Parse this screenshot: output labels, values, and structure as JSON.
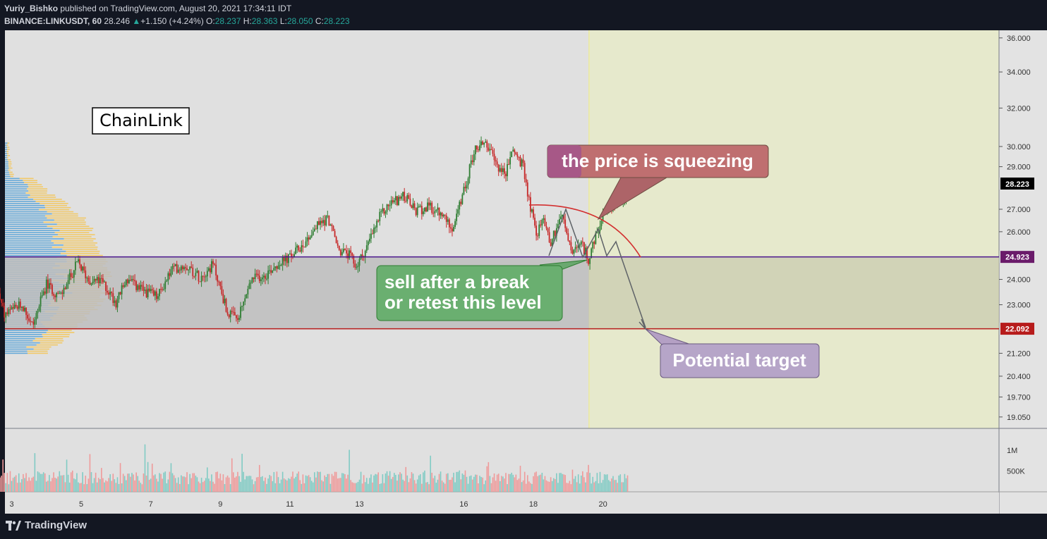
{
  "header": {
    "author": "Yuriy_Bishko",
    "published_text": " published on TradingView.com, August 20, 2021 17:34:11 IDT",
    "symbol": "BINANCE:LINKUSDT, 60",
    "last_price": "28.246",
    "change_arrow": "▲",
    "change": "+1.150 (+4.24%)",
    "o_label": "O:",
    "o_value": "28.237",
    "h_label": "H:",
    "h_value": "28.363",
    "l_label": "L:",
    "l_value": "28.050",
    "c_label": "C:",
    "c_value": "28.223"
  },
  "footer": {
    "brand": "TradingView"
  },
  "colors": {
    "up": "#26a69a",
    "down": "#ef5350",
    "candle_up": "#2e7d32",
    "candle_down": "#c62828",
    "chart_bg": "#e0e0e0",
    "forecast_bg": "#e6e9cc",
    "range_box": "#bdbdbd",
    "resistance_line": "#4a148c",
    "support_line": "#b71c1c",
    "profile_blue": "#4f9fd6",
    "profile_orange": "#f5c451"
  },
  "chart_data": {
    "type": "candlestick",
    "symbol": "BINANCE:LINKUSDT",
    "interval": "60",
    "y_axis_labels": [
      "36.000",
      "34.000",
      "32.000",
      "30.000",
      "29.000",
      "27.000",
      "26.000",
      "24.000",
      "23.000",
      "21.200",
      "20.400",
      "19.700",
      "19.050"
    ],
    "y_scale": "log",
    "y_range": [
      18.6,
      36.8
    ],
    "x_axis_labels": [
      "3",
      "5",
      "7",
      "9",
      "11",
      "13",
      "16",
      "18",
      "20"
    ],
    "x_axis_unit": "day of August 2021",
    "volume_labels": [
      "1M",
      "500K"
    ],
    "volume_range": [
      0,
      1400000
    ],
    "current_price_label": "28.223",
    "resistance_price": "24.923",
    "support_price": "22.092",
    "forecast_start_x": 19.6,
    "price_path": [
      [
        2.0,
        23.5
      ],
      [
        2.5,
        24.0
      ],
      [
        2.8,
        22.6
      ],
      [
        3.3,
        23.0
      ],
      [
        3.6,
        22.2
      ],
      [
        4.0,
        23.8
      ],
      [
        4.4,
        23.3
      ],
      [
        4.9,
        24.7
      ],
      [
        5.2,
        24.0
      ],
      [
        5.6,
        23.9
      ],
      [
        6.0,
        23.1
      ],
      [
        6.3,
        24.0
      ],
      [
        6.7,
        23.6
      ],
      [
        7.2,
        23.3
      ],
      [
        7.6,
        24.4
      ],
      [
        8.0,
        24.6
      ],
      [
        8.4,
        24.1
      ],
      [
        8.8,
        24.6
      ],
      [
        9.2,
        22.7
      ],
      [
        9.5,
        22.4
      ],
      [
        9.9,
        24.0
      ],
      [
        10.3,
        24.2
      ],
      [
        10.6,
        24.6
      ],
      [
        11.0,
        24.9
      ],
      [
        11.4,
        25.5
      ],
      [
        11.8,
        26.3
      ],
      [
        12.1,
        26.6
      ],
      [
        12.4,
        25.2
      ],
      [
        12.7,
        25.0
      ],
      [
        12.9,
        24.5
      ],
      [
        13.2,
        25.3
      ],
      [
        13.6,
        26.7
      ],
      [
        13.9,
        27.3
      ],
      [
        14.3,
        27.6
      ],
      [
        14.6,
        26.9
      ],
      [
        15.0,
        27.1
      ],
      [
        15.3,
        26.8
      ],
      [
        15.7,
        26.2
      ],
      [
        16.0,
        27.8
      ],
      [
        16.3,
        29.8
      ],
      [
        16.6,
        30.3
      ],
      [
        16.9,
        29.2
      ],
      [
        17.2,
        28.6
      ],
      [
        17.4,
        29.9
      ],
      [
        17.7,
        29.0
      ],
      [
        17.9,
        27.2
      ],
      [
        18.1,
        25.9
      ],
      [
        18.3,
        26.6
      ],
      [
        18.5,
        25.5
      ],
      [
        18.8,
        26.8
      ],
      [
        19.1,
        25.1
      ],
      [
        19.4,
        25.4
      ],
      [
        19.6,
        24.8
      ],
      [
        19.8,
        25.8
      ],
      [
        20.0,
        26.6
      ],
      [
        20.3,
        27.2
      ],
      [
        20.6,
        27.6
      ],
      [
        20.75,
        28.2
      ]
    ],
    "volume_profile_side": "left",
    "annotations": [
      {
        "text": "ChainLink"
      },
      {
        "text": "the price is squeezing"
      },
      {
        "text": "sell after a break\nor retest this level"
      },
      {
        "text": "Potential target"
      }
    ]
  }
}
